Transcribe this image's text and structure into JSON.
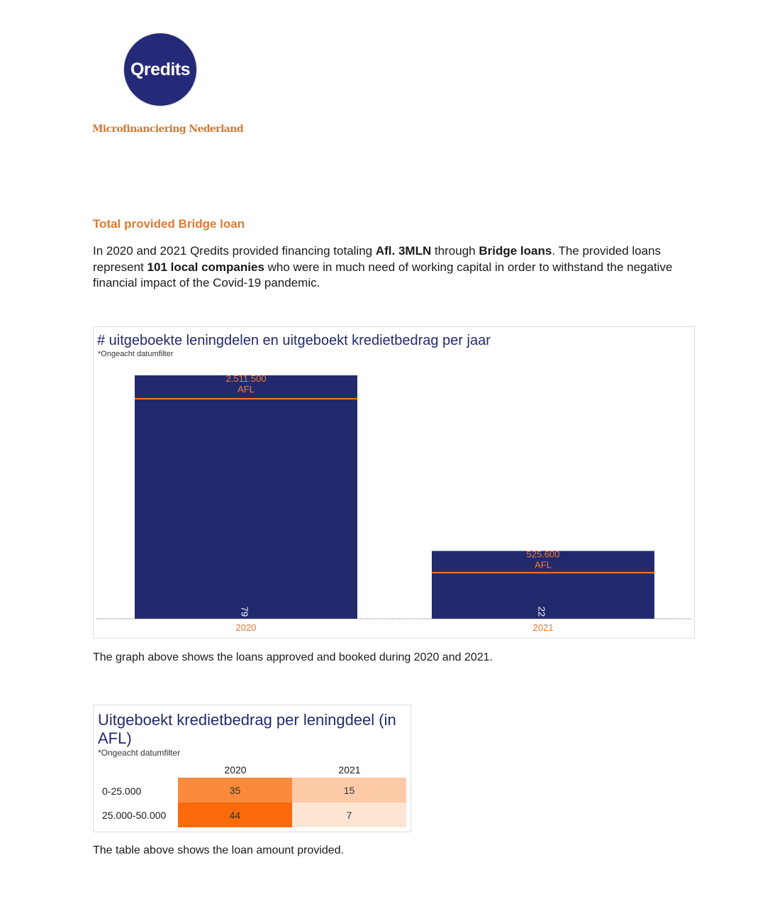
{
  "header": {
    "logo_text": "Qredits",
    "tagline": "Microfinanciering Nederland"
  },
  "section": {
    "heading": "Total provided Bridge loan",
    "intro_parts": [
      {
        "text": "In 2020 and 2021 Qredits provided financing totaling ",
        "bold": false
      },
      {
        "text": "Afl. 3MLN",
        "bold": true
      },
      {
        "text": " through ",
        "bold": false
      },
      {
        "text": "Bridge loans",
        "bold": true
      },
      {
        "text": ". The provided loans represent ",
        "bold": false
      },
      {
        "text": "101 local companies",
        "bold": true
      },
      {
        "text": " who were in much need of working capital in order to withstand the negative financial impact of the Covid-19 pandemic.",
        "bold": false
      }
    ],
    "chart_caption": "The graph above shows the loans approved and booked during 2020 and 2021.",
    "table_caption": "The table above shows the loan amount provided."
  },
  "chart_data": [
    {
      "type": "bar",
      "title": "# uitgeboekte leningdelen en uitgeboekt kredietbedrag per jaar",
      "subtitle": "*Ongeacht datumfilter",
      "categories": [
        "2020",
        "2021"
      ],
      "series": [
        {
          "values": [
            79,
            22
          ],
          "color": "#222a6e"
        },
        {
          "values": [
            2511500,
            525600
          ],
          "labels": [
            "2.511.500\nAFL",
            "525.600\nAFL"
          ],
          "unit": "AFL",
          "color": "#f07c2e",
          "mark": "reference-line"
        }
      ],
      "grid": false
    },
    {
      "type": "table",
      "title": "Uitgeboekt kredietbedrag per leningdeel (in AFL)",
      "subtitle": "*Ongeacht datumfilter",
      "columns": [
        "2020",
        "2021"
      ],
      "rows": [
        {
          "label": "0-25.000",
          "values": [
            35,
            15
          ]
        },
        {
          "label": "25.000-50.000",
          "values": [
            44,
            7
          ]
        }
      ],
      "colors": {
        "35": "#fb8a3c",
        "15": "#fdcaa7",
        "44": "#fb6a0a",
        "7": "#fde5d4"
      }
    }
  ]
}
